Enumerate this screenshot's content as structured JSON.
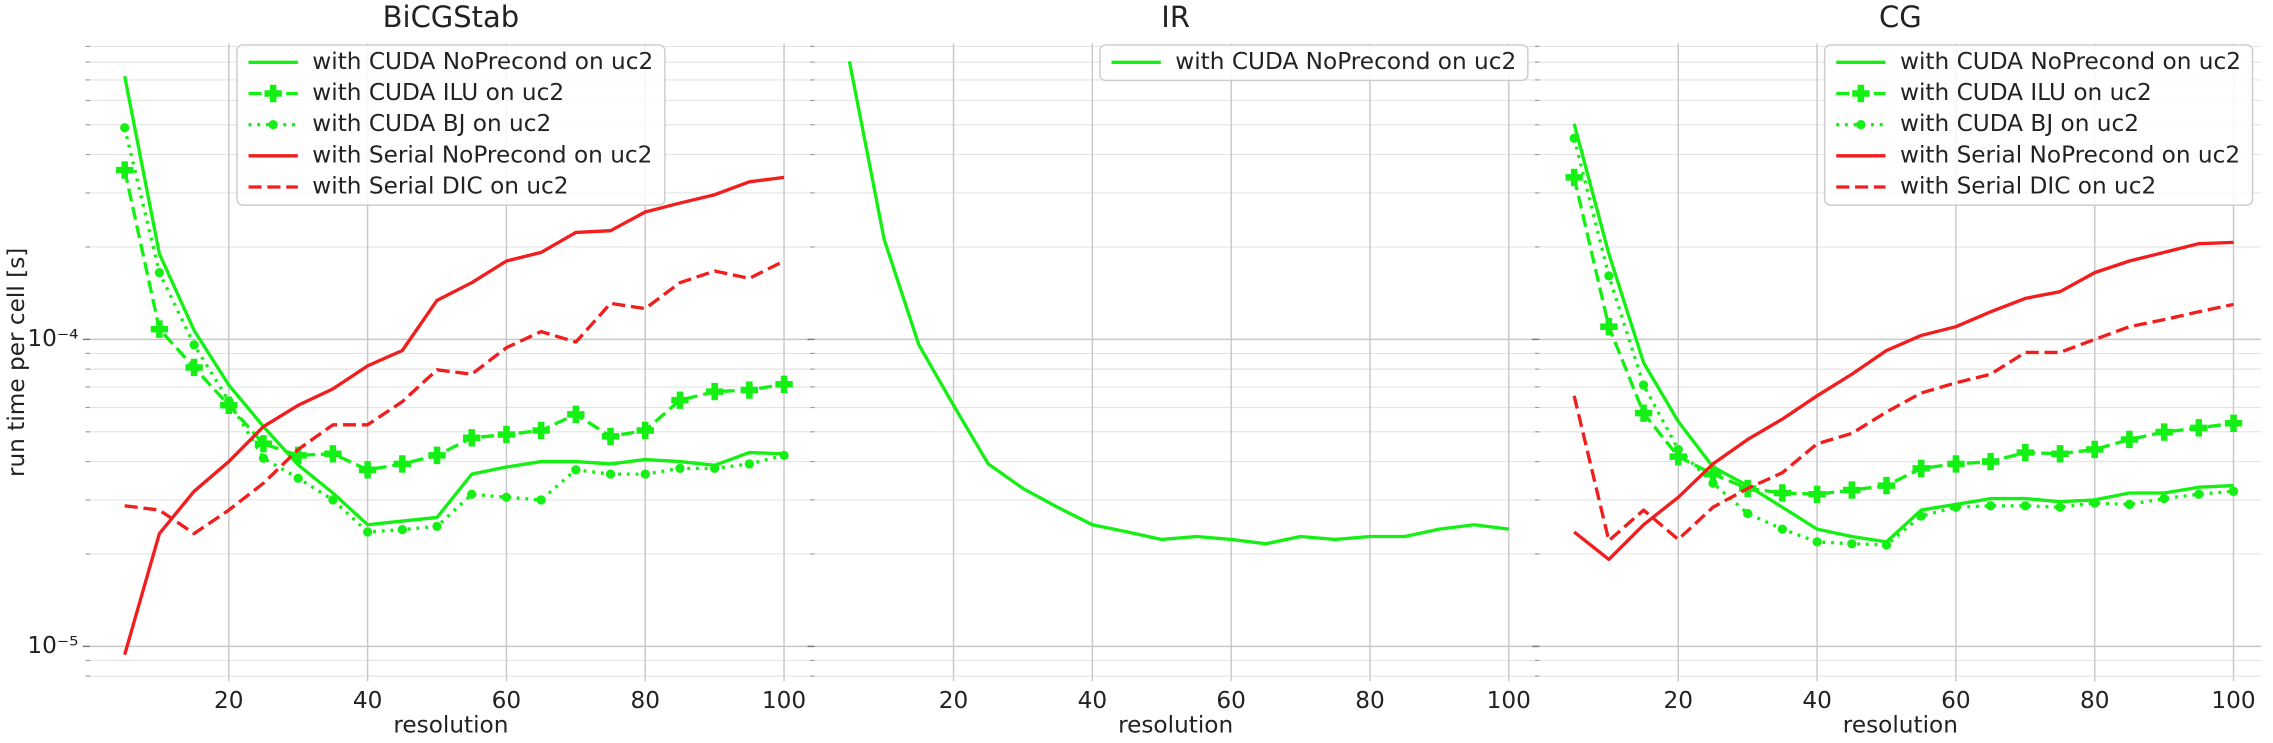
{
  "chart_data": [
    {
      "type": "line",
      "title": "BiCGStab",
      "xlabel": "resolution",
      "ylabel": "run time per cell [s]",
      "log_y": true,
      "grid": true,
      "legend": "upper center",
      "xlim": [
        0,
        104
      ],
      "xticks": [
        20,
        40,
        60,
        80,
        100
      ],
      "ylim": [
        7.7e-06,
        0.00092
      ],
      "yticks": [
        {
          "value": 1e-05,
          "label": "10⁻⁵"
        },
        {
          "value": 0.0001,
          "label": "10⁻⁴"
        }
      ],
      "minor_yticks": [
        8e-06,
        9e-06,
        2e-05,
        3e-05,
        4e-05,
        5e-05,
        6e-05,
        7e-05,
        8e-05,
        9e-05,
        0.0002,
        0.0003,
        0.0004,
        0.0005,
        0.0006,
        0.0007,
        0.0008,
        0.0009
      ],
      "x": [
        5,
        10,
        15,
        20,
        25,
        30,
        35,
        40,
        45,
        50,
        55,
        60,
        65,
        70,
        75,
        80,
        85,
        90,
        95,
        100
      ],
      "series": [
        {
          "name": "with CUDA NoPrecond on uc2",
          "color": "#14f014",
          "linestyle": "solid",
          "marker": null,
          "values": [
            0.00072,
            0.00019,
            0.000107,
            7.1e-05,
            5.2e-05,
            3.9e-05,
            3.16e-05,
            2.49e-05,
            2.56e-05,
            2.63e-05,
            3.64e-05,
            3.84e-05,
            4e-05,
            4e-05,
            3.93e-05,
            4.06e-05,
            4e-05,
            3.89e-05,
            4.28e-05,
            4.24e-05
          ]
        },
        {
          "name": "with CUDA ILU on uc2",
          "color": "#14f014",
          "linestyle": "dashed",
          "marker": "plus",
          "values": [
            0.000356,
            0.000108,
            8.1e-05,
            6.1e-05,
            4.57e-05,
            4.19e-05,
            4.24e-05,
            3.76e-05,
            3.93e-05,
            4.19e-05,
            4.78e-05,
            4.9e-05,
            5.05e-05,
            5.7e-05,
            4.83e-05,
            5.05e-05,
            6.34e-05,
            6.76e-05,
            6.84e-05,
            7.14e-05
          ]
        },
        {
          "name": "with CUDA BJ on uc2",
          "color": "#14f014",
          "linestyle": "dotted",
          "marker": "circle",
          "values": [
            0.000489,
            0.000165,
            9.6e-05,
            6.3e-05,
            4.1e-05,
            3.53e-05,
            3e-05,
            2.36e-05,
            2.4e-05,
            2.46e-05,
            3.13e-05,
            3.06e-05,
            3e-05,
            3.76e-05,
            3.64e-05,
            3.64e-05,
            3.8e-05,
            3.8e-05,
            3.93e-05,
            4.19e-05
          ]
        },
        {
          "name": "with Serial NoPrecond on uc2",
          "color": "#f21d1d",
          "linestyle": "solid",
          "marker": null,
          "values": [
            9.4e-06,
            2.33e-05,
            3.2e-05,
            4e-05,
            5.2e-05,
            6.1e-05,
            6.9e-05,
            8.2e-05,
            9.2e-05,
            0.000134,
            0.000153,
            0.00018,
            0.000192,
            0.000223,
            0.000226,
            0.00026,
            0.000278,
            0.000296,
            0.000326,
            0.000337
          ]
        },
        {
          "name": "with Serial DIC on uc2",
          "color": "#f21d1d",
          "linestyle": "dashed",
          "marker": null,
          "values": [
            2.87e-05,
            2.78e-05,
            2.33e-05,
            2.78e-05,
            3.4e-05,
            4.38e-05,
            5.27e-05,
            5.27e-05,
            6.27e-05,
            7.96e-05,
            7.7e-05,
            9.4e-05,
            0.000106,
            9.8e-05,
            0.000131,
            0.000126,
            0.000153,
            0.000167,
            0.000158,
            0.00018
          ]
        }
      ]
    },
    {
      "type": "line",
      "title": "IR",
      "xlabel": "resolution",
      "log_y": true,
      "grid": true,
      "legend": "upper right",
      "xlim": [
        0,
        104
      ],
      "xticks": [
        20,
        40,
        60,
        80,
        100
      ],
      "ylim": [
        7.7e-06,
        0.00092
      ],
      "x": [
        5,
        10,
        15,
        20,
        25,
        30,
        35,
        40,
        45,
        50,
        55,
        60,
        65,
        70,
        75,
        80,
        85,
        90,
        95,
        100
      ],
      "series": [
        {
          "name": "with CUDA NoPrecond on uc2",
          "color": "#14f014",
          "linestyle": "solid",
          "marker": null,
          "values": [
            0.000805,
            0.000212,
            9.6e-05,
            6.1e-05,
            3.93e-05,
            3.27e-05,
            2.84e-05,
            2.49e-05,
            2.36e-05,
            2.23e-05,
            2.28e-05,
            2.23e-05,
            2.16e-05,
            2.28e-05,
            2.23e-05,
            2.28e-05,
            2.28e-05,
            2.41e-05,
            2.49e-05,
            2.41e-05
          ]
        }
      ]
    },
    {
      "type": "line",
      "title": "CG",
      "xlabel": "resolution",
      "log_y": true,
      "grid": true,
      "legend": "upper right",
      "xlim": [
        0,
        104
      ],
      "xticks": [
        20,
        40,
        60,
        80,
        100
      ],
      "ylim": [
        7.7e-06,
        0.00092
      ],
      "x": [
        5,
        10,
        15,
        20,
        25,
        30,
        35,
        40,
        45,
        50,
        55,
        60,
        65,
        70,
        75,
        80,
        85,
        90,
        95,
        100
      ],
      "series": [
        {
          "name": "with CUDA NoPrecond on uc2",
          "color": "#14f014",
          "linestyle": "solid",
          "marker": null,
          "values": [
            0.000504,
            0.00019,
            8.4e-05,
            5.4e-05,
            3.84e-05,
            3.34e-05,
            2.84e-05,
            2.41e-05,
            2.28e-05,
            2.19e-05,
            2.78e-05,
            2.9e-05,
            3.03e-05,
            3.03e-05,
            2.96e-05,
            3e-05,
            3.16e-05,
            3.16e-05,
            3.3e-05,
            3.34e-05
          ]
        },
        {
          "name": "with CUDA ILU on uc2",
          "color": "#14f014",
          "linestyle": "dashed",
          "marker": "plus",
          "values": [
            0.000337,
            0.00011,
            5.75e-05,
            4.15e-05,
            3.64e-05,
            3.27e-05,
            3.16e-05,
            3.13e-05,
            3.23e-05,
            3.34e-05,
            3.8e-05,
            3.93e-05,
            4e-05,
            4.28e-05,
            4.24e-05,
            4.38e-05,
            4.72e-05,
            4.99e-05,
            5.15e-05,
            5.33e-05
          ]
        },
        {
          "name": "with CUDA BJ on uc2",
          "color": "#14f014",
          "linestyle": "dotted",
          "marker": "circle",
          "values": [
            0.000452,
            0.000161,
            7.1e-05,
            4.38e-05,
            3.4e-05,
            2.71e-05,
            2.41e-05,
            2.19e-05,
            2.16e-05,
            2.14e-05,
            2.66e-05,
            2.84e-05,
            2.87e-05,
            2.87e-05,
            2.84e-05,
            2.93e-05,
            2.9e-05,
            3.03e-05,
            3.13e-05,
            3.2e-05
          ]
        },
        {
          "name": "with Serial NoPrecond on uc2",
          "color": "#f21d1d",
          "linestyle": "solid",
          "marker": null,
          "values": [
            2.36e-05,
            1.92e-05,
            2.49e-05,
            3.06e-05,
            3.93e-05,
            4.72e-05,
            5.5e-05,
            6.55e-05,
            7.7e-05,
            9.2e-05,
            0.000103,
            0.00011,
            0.000123,
            0.000136,
            0.000143,
            0.000165,
            0.00018,
            0.000192,
            0.000205,
            0.000207
          ]
        },
        {
          "name": "with Serial DIC on uc2",
          "color": "#f21d1d",
          "linestyle": "dashed",
          "marker": null,
          "values": [
            6.55e-05,
            2.21e-05,
            2.78e-05,
            2.23e-05,
            2.84e-05,
            3.27e-05,
            3.68e-05,
            4.57e-05,
            4.94e-05,
            5.8e-05,
            6.69e-05,
            7.22e-05,
            7.7e-05,
            9.07e-05,
            9.07e-05,
            0.0001,
            0.00011,
            0.000116,
            0.000123,
            0.00013
          ]
        }
      ]
    }
  ]
}
